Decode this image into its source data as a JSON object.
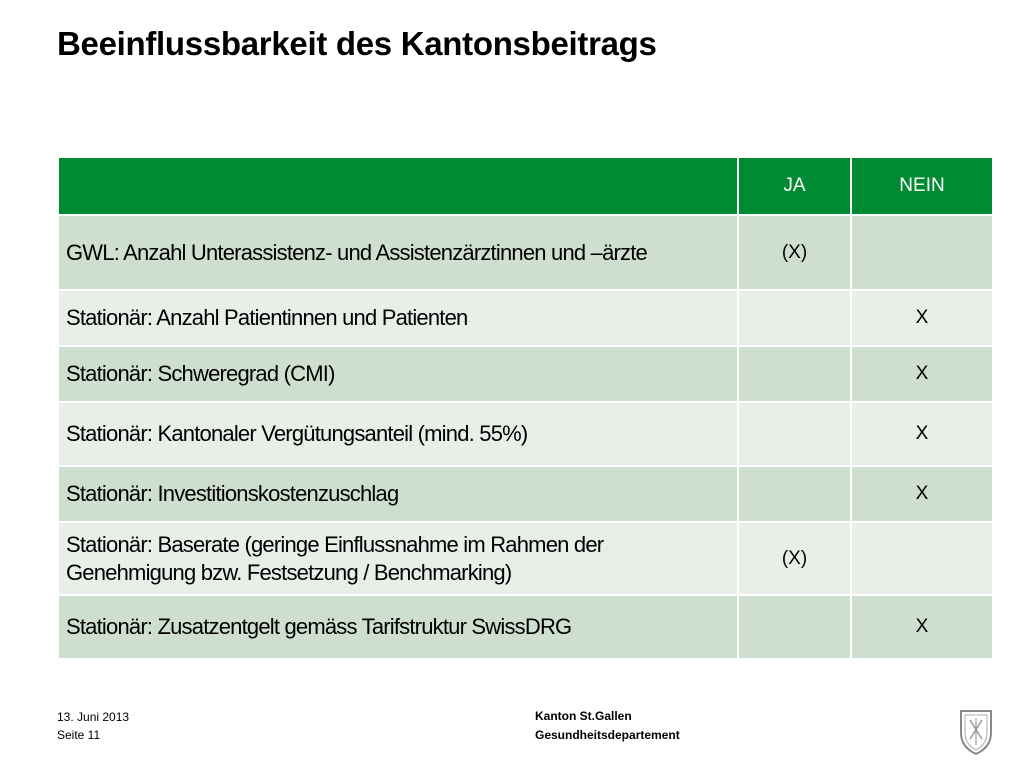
{
  "slide": {
    "title": "Beeinflussbarkeit des Kantonsbeitrags"
  },
  "table": {
    "header": {
      "criterion": "",
      "yes": "JA",
      "no": "NEIN"
    },
    "rows": [
      {
        "criterion": "GWL: Anzahl Unterassistenz- und Assistenzärztinnen und –ärzte",
        "ja": "(X)",
        "nein": ""
      },
      {
        "criterion": "Stationär: Anzahl Patientinnen und Patienten",
        "ja": "",
        "nein": "X"
      },
      {
        "criterion": "Stationär: Schweregrad (CMI)",
        "ja": "",
        "nein": "X"
      },
      {
        "criterion": "Stationär: Kantonaler Vergütungsanteil (mind. 55%)",
        "ja": "",
        "nein": "X"
      },
      {
        "criterion": "Stationär: Investitionskostenzuschlag",
        "ja": "",
        "nein": "X"
      },
      {
        "criterion": "Stationär: Baserate (geringe Einflussnahme im Rahmen der Genehmigung bzw. Festsetzung / Benchmarking)",
        "ja": "(X)",
        "nein": ""
      },
      {
        "criterion": "Stationär: Zusatzentgelt gemäss Tarifstruktur SwissDRG",
        "ja": "",
        "nein": "X"
      }
    ],
    "colors": {
      "header": "#008a32",
      "row_dark": "#cfdfcf",
      "row_light": "#e8eee8"
    }
  },
  "footer": {
    "date": "13. Juni 2013",
    "page": "Seite 11",
    "organization": "Kanton St.Gallen",
    "department": "Gesundheitsdepartement"
  },
  "icons": {
    "logo": "coat-of-arms-icon"
  }
}
